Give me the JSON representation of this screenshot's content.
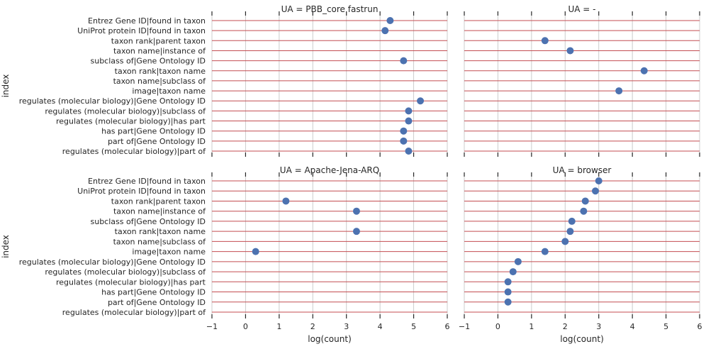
{
  "colors": {
    "row_line": "#c44e52",
    "grid_line": "#cccccc",
    "point": "#4c72b0",
    "tick": "#262626",
    "text": "#262626"
  },
  "chart_data": {
    "type": "scatter",
    "shared_categories": [
      "Entrez Gene ID|found in taxon",
      "UniProt protein ID|found in taxon",
      "taxon rank|parent taxon",
      "taxon name|instance of",
      "subclass of|Gene Ontology ID",
      "taxon rank|taxon name",
      "taxon name|subclass of",
      "image|taxon name",
      "regulates (molecular biology)|Gene Ontology ID",
      "regulates (molecular biology)|subclass of",
      "regulates (molecular biology)|has part",
      "has part|Gene Ontology ID",
      "part of|Gene Ontology ID",
      "regulates (molecular biology)|part of"
    ],
    "xlabel": "log(count)",
    "ylabel": "index",
    "xlim": [
      -1,
      6
    ],
    "xticks": [
      -1,
      0,
      1,
      2,
      3,
      4,
      5,
      6
    ],
    "grid": true,
    "panels": [
      {
        "title": "UA = PBB_core fastrun",
        "values": [
          4.3,
          4.15,
          null,
          null,
          4.7,
          null,
          null,
          null,
          5.2,
          4.85,
          4.85,
          4.7,
          4.7,
          4.85
        ]
      },
      {
        "title": "UA = -",
        "values": [
          null,
          null,
          1.4,
          2.15,
          null,
          4.35,
          null,
          3.6,
          null,
          null,
          null,
          null,
          null,
          null
        ]
      },
      {
        "title": "UA = Apache-Jena-ARQ",
        "values": [
          null,
          null,
          1.2,
          3.3,
          null,
          3.3,
          null,
          0.3,
          null,
          null,
          null,
          null,
          null,
          null
        ]
      },
      {
        "title": "UA = browser",
        "values": [
          3.0,
          2.9,
          2.6,
          2.55,
          2.2,
          2.15,
          2.0,
          1.4,
          0.6,
          0.45,
          0.3,
          0.3,
          0.3,
          null
        ]
      }
    ]
  }
}
